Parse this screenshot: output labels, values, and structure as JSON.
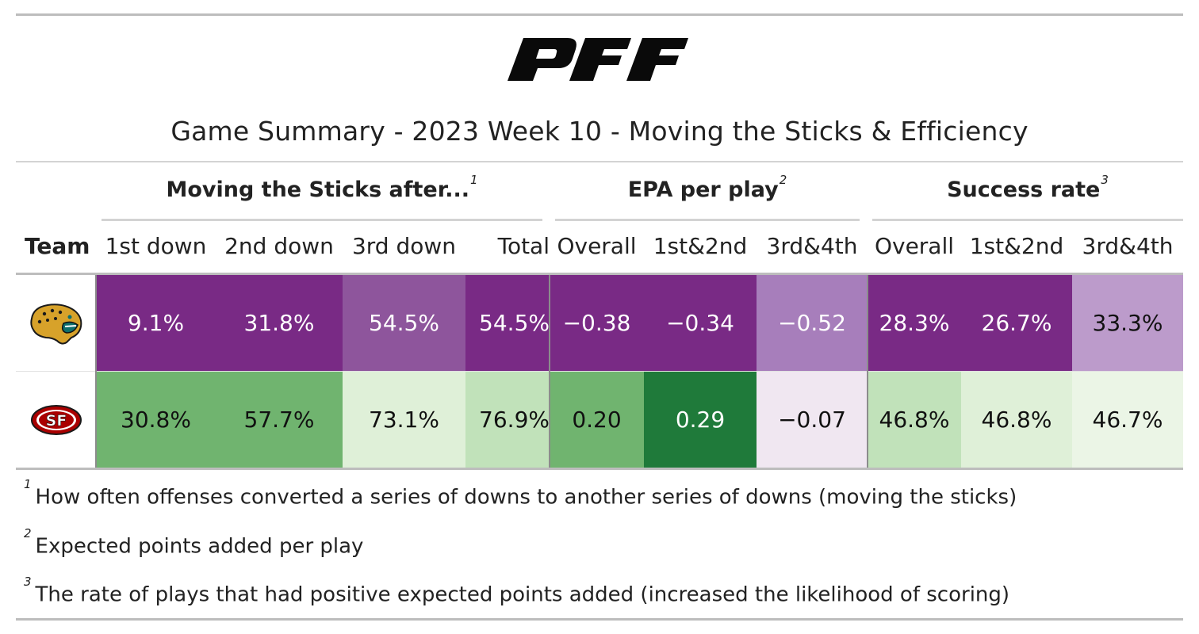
{
  "title": "Game Summary - 2023 Week 10 - Moving the Sticks & Efficiency",
  "logo": "PFF",
  "colors": {
    "purple_dark": "#792a85",
    "purple_mid": "#8e559c",
    "purple_light": "#a77ebb",
    "purple_pale": "#bc9bcb",
    "purple_faint": "#f0e7f1",
    "green_dark": "#1f7a3a",
    "green_mid": "#70b46f",
    "green_light": "#c1e2ba",
    "green_pale": "#dff0d8",
    "green_faint": "#ebf5e6"
  },
  "spanners": [
    {
      "label": "Moving the Sticks after...",
      "footnote": "1"
    },
    {
      "label": "EPA per play",
      "footnote": "2"
    },
    {
      "label": "Success rate",
      "footnote": "3"
    }
  ],
  "columns": {
    "team": "Team",
    "sticks": [
      "1st down",
      "2nd down",
      "3rd down",
      "Total"
    ],
    "epa": [
      "Overall",
      "1st&2nd",
      "3rd&4th"
    ],
    "success": [
      "Overall",
      "1st&2nd",
      "3rd&4th"
    ]
  },
  "chart_data": {
    "type": "table",
    "title": "Game Summary - 2023 Week 10 - Moving the Sticks & Efficiency",
    "columns": [
      "Team",
      "1st down",
      "2nd down",
      "3rd down",
      "Total",
      "Overall",
      "1st&2nd",
      "3rd&4th",
      "Overall",
      "1st&2nd",
      "3rd&4th"
    ],
    "rows": [
      {
        "team": "jaguars-logo",
        "cells": [
          "9.1%",
          "31.8%",
          "54.5%",
          "54.5%",
          "−0.38",
          "−0.34",
          "−0.52",
          "28.3%",
          "26.7%",
          "33.3%"
        ],
        "fills": [
          "#792a85",
          "#792a85",
          "#8e559c",
          "#792a85",
          "#792a85",
          "#792a85",
          "#a77ebb",
          "#792a85",
          "#792a85",
          "#bc9bcb"
        ],
        "text_colors": [
          "#ffffff",
          "#ffffff",
          "#ffffff",
          "#ffffff",
          "#ffffff",
          "#ffffff",
          "#ffffff",
          "#ffffff",
          "#ffffff",
          "#111111"
        ]
      },
      {
        "team": "49ers-logo",
        "cells": [
          "30.8%",
          "57.7%",
          "73.1%",
          "76.9%",
          "0.20",
          "0.29",
          "−0.07",
          "46.8%",
          "46.8%",
          "46.7%"
        ],
        "fills": [
          "#70b46f",
          "#70b46f",
          "#dff0d8",
          "#c1e2ba",
          "#70b46f",
          "#1f7a3a",
          "#f0e7f1",
          "#c1e2ba",
          "#dff0d8",
          "#ebf5e6"
        ],
        "text_colors": [
          "#111111",
          "#111111",
          "#111111",
          "#111111",
          "#111111",
          "#ffffff",
          "#111111",
          "#111111",
          "#111111",
          "#111111"
        ]
      }
    ]
  },
  "footnotes": [
    {
      "mark": "1",
      "text": "How often offenses converted a series of downs to another series of downs (moving the sticks)"
    },
    {
      "mark": "2",
      "text": "Expected points added per play"
    },
    {
      "mark": "3",
      "text": "The rate of plays that had positive expected points added (increased the likelihood of scoring)"
    }
  ]
}
